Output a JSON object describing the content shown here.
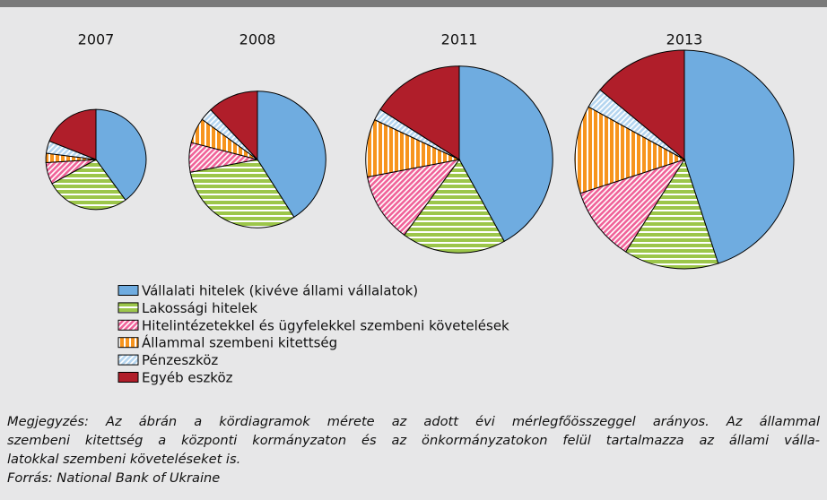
{
  "chart_data": {
    "type": "pie",
    "categories": [
      "Vállalati hitelek (kivéve állami vállalatok)",
      "Lakossági hitelek",
      "Hitelintézetekkel és ügyfelekkel szembeni követelések",
      "Állammal szembeni kitettség",
      "Pénzeszköz",
      "Egyéb eszköz"
    ],
    "colors": [
      "#6face0",
      "#9cc64a",
      "#f0649a",
      "#f7941d",
      "#b6d6f0",
      "#b01e2a"
    ],
    "hatches": [
      "none",
      "horizontal",
      "diagonal",
      "vertical",
      "diagonal",
      "none"
    ],
    "pies": [
      {
        "title": "2007",
        "size": 21,
        "values": [
          40,
          27,
          7,
          3,
          4,
          19
        ]
      },
      {
        "title": "2008",
        "size": 39,
        "values": [
          41,
          31,
          7,
          6,
          3,
          12
        ]
      },
      {
        "title": "2011",
        "size": 73,
        "values": [
          42,
          18,
          12,
          10,
          2,
          16
        ]
      },
      {
        "title": "2013",
        "size": 100,
        "values": [
          45,
          14,
          11,
          13,
          3,
          14
        ]
      }
    ],
    "note": [
      "Megjegyzés: Az ábrán a kördiagramok mérete az adott évi mérlegfőösszeggel arányos. Az állammal",
      "szembeni kitettség a központi kormányzaton és az önkormányzatokon felül tartalmazza az állami válla-",
      "latokkal szembeni követeléseket is."
    ],
    "source": "Forrás: National Bank of Ukraine"
  }
}
